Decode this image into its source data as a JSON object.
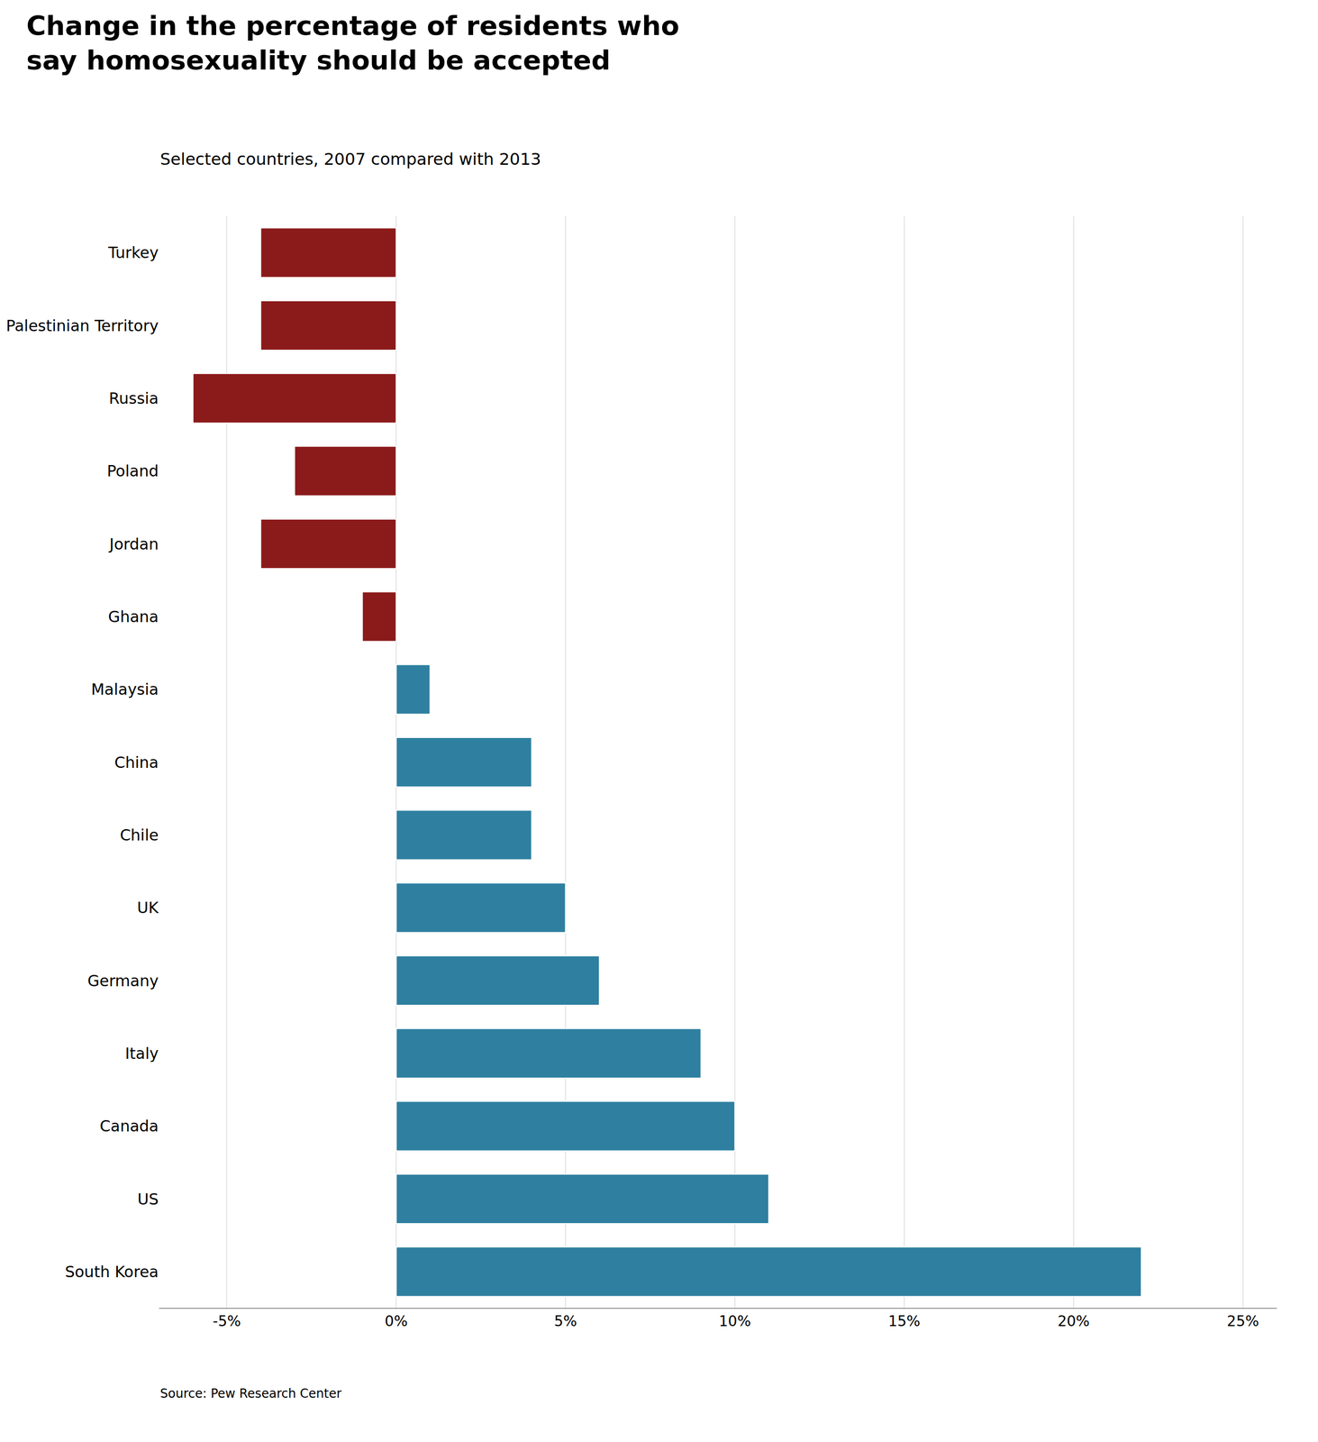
{
  "chart_data": {
    "type": "bar",
    "orientation": "horizontal",
    "title": "Change in the percentage of residents who\nsay homosexuality should be accepted",
    "subtitle": "Selected countries, 2007 compared with 2013",
    "source": "Source: Pew Research Center",
    "categories": [
      "Turkey",
      "Palestinian Territory",
      "Russia",
      "Poland",
      "Jordan",
      "Ghana",
      "Malaysia",
      "China",
      "Chile",
      "UK",
      "Germany",
      "Italy",
      "Canada",
      "US",
      "South Korea"
    ],
    "values": [
      -4,
      -4,
      -6,
      -3,
      -4,
      -1,
      1,
      4,
      4,
      5,
      6,
      9,
      10,
      11,
      22
    ],
    "colors": [
      "#8B1A1A",
      "#8B1A1A",
      "#8B1A1A",
      "#8B1A1A",
      "#8B1A1A",
      "#8B1A1A",
      "#2E7FA0",
      "#2E7FA0",
      "#2E7FA0",
      "#2E7FA0",
      "#2E7FA0",
      "#2E7FA0",
      "#2E7FA0",
      "#2E7FA0",
      "#2E7FA0"
    ],
    "xlim": [
      -7,
      26
    ],
    "xticks": [
      {
        "value": -5,
        "label": "-5%"
      },
      {
        "value": 0,
        "label": "0%"
      },
      {
        "value": 5,
        "label": "5%"
      },
      {
        "value": 10,
        "label": "10%"
      },
      {
        "value": 15,
        "label": "15%"
      },
      {
        "value": 20,
        "label": "20%"
      },
      {
        "value": 25,
        "label": "25%"
      }
    ],
    "grid": true
  }
}
